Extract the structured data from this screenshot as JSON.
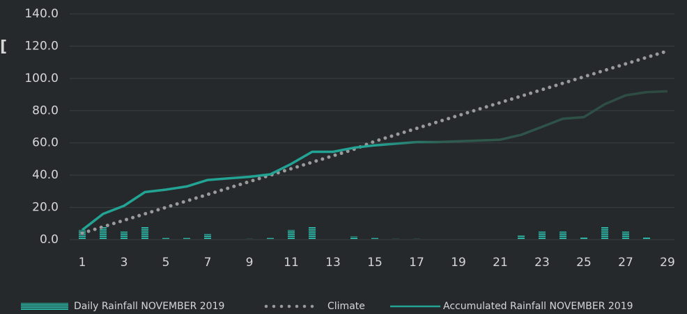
{
  "chart_data": {
    "type": "combo",
    "annotation": "[",
    "categories": [
      1,
      null,
      3,
      null,
      5,
      null,
      7,
      null,
      9,
      null,
      11,
      null,
      13,
      null,
      15,
      null,
      17,
      null,
      19,
      null,
      21,
      null,
      23,
      null,
      25,
      null,
      27,
      null,
      29
    ],
    "series": [
      {
        "name": "Daily Rainfall NOVEMBER 2019",
        "type": "bar",
        "color": "#2bb5a5",
        "values": [
          6,
          8,
          5,
          8,
          1,
          1,
          3.5,
          0.3,
          0.5,
          1,
          6,
          8,
          0,
          2,
          1,
          0.5,
          0.5,
          0,
          0,
          0.3,
          0,
          2.5,
          5,
          5,
          1.5,
          8,
          5,
          1.5,
          0.3
        ]
      },
      {
        "name": "Climate",
        "type": "dotted",
        "color": "#9a9a9a",
        "values": [
          4,
          8,
          12,
          16,
          20,
          24,
          28,
          32,
          36,
          40,
          44,
          48,
          52,
          56,
          61,
          65,
          69,
          73,
          77,
          81,
          85,
          89,
          93,
          97,
          101,
          105,
          109,
          113,
          117
        ]
      },
      {
        "name": "Accumulated Rainfall NOVEMBER 2019",
        "type": "line",
        "color": "#23a394",
        "values": [
          6,
          16,
          21,
          29.5,
          31,
          33,
          37,
          38,
          39,
          40.5,
          47,
          54.5,
          54.5,
          57,
          58.5,
          59.5,
          60.5,
          60.5,
          61,
          61.5,
          62,
          65,
          70,
          75,
          76,
          84,
          89.5,
          91.5,
          92
        ]
      }
    ],
    "ylim": [
      0,
      140
    ],
    "yticks": [
      {
        "value": 0,
        "label": "0.0"
      },
      {
        "value": 20,
        "label": "20.0"
      },
      {
        "value": 40,
        "label": "40.0"
      },
      {
        "value": 60,
        "label": "60.0"
      },
      {
        "value": 80,
        "label": "80.0"
      },
      {
        "value": 100,
        "label": "100.0"
      },
      {
        "value": 120,
        "label": "120.0"
      },
      {
        "value": 140,
        "label": "140.0"
      }
    ],
    "grid": true
  }
}
